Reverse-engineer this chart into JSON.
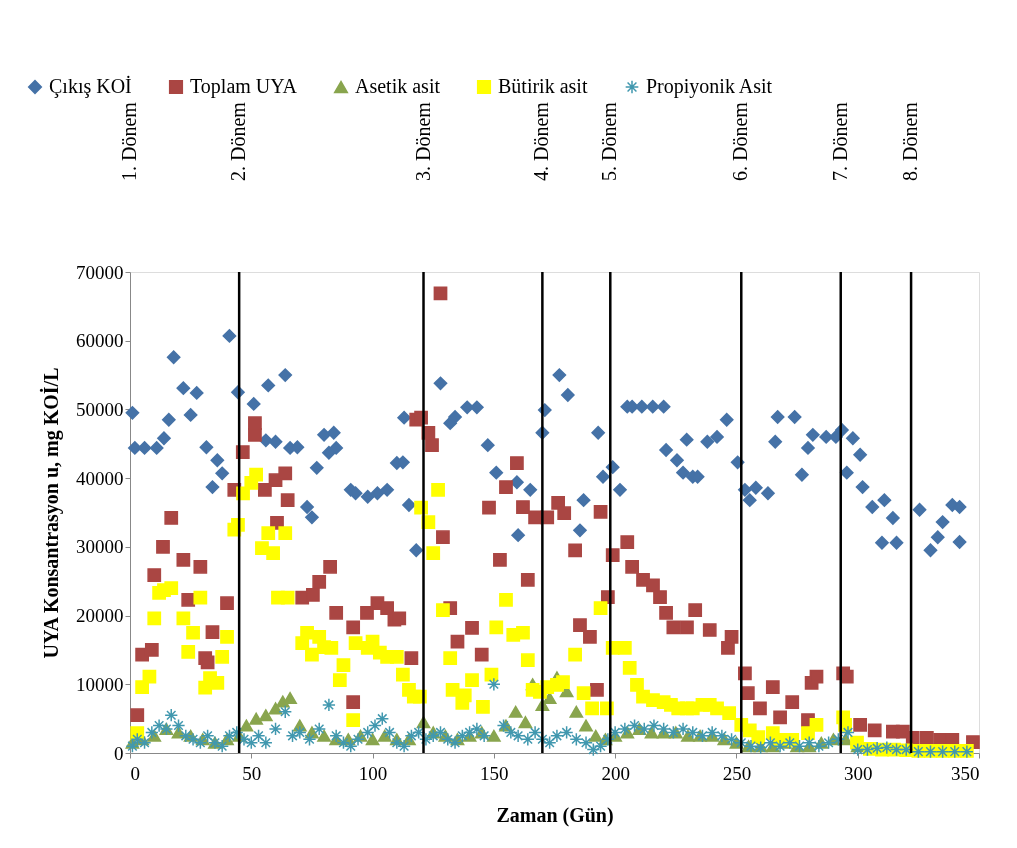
{
  "chart_data": {
    "type": "scatter",
    "xlabel": "Zaman (Gün)",
    "ylabel": "UYA Konsantrasyon u, mg KOİ/L",
    "xlim": [
      0,
      350
    ],
    "xticks": [
      0,
      50,
      100,
      150,
      200,
      250,
      300,
      350
    ],
    "ylim": [
      0,
      70000
    ],
    "yticks": [
      0,
      10000,
      20000,
      30000,
      40000,
      50000,
      60000,
      70000
    ],
    "grid": false,
    "legend": "top",
    "series": [
      {
        "name": "Çıkış KOİ",
        "color": "#4572a7",
        "marker": "diamond",
        "x": [
          1,
          2,
          6,
          11,
          14,
          16,
          18,
          22,
          25,
          27.5,
          31.5,
          34,
          36,
          38,
          41,
          44.5,
          51,
          56,
          57,
          60,
          64,
          66,
          69,
          73,
          75,
          77,
          80,
          82,
          84,
          85,
          91,
          93,
          98,
          102,
          106,
          110,
          112.5,
          113,
          115,
          118,
          128,
          132,
          134,
          139,
          143,
          147.5,
          151,
          159.5,
          160,
          165,
          170,
          171,
          177,
          180.5,
          185.5,
          187,
          193,
          195,
          199,
          202,
          205,
          207,
          211,
          215.5,
          220,
          221,
          225.5,
          228,
          229.5,
          232,
          234,
          238,
          242,
          246,
          250.5,
          253.5,
          255.5,
          258,
          263,
          266,
          267,
          274,
          277,
          279.5,
          281.5,
          287,
          291,
          293.5,
          295.5,
          298,
          301,
          302,
          306,
          310,
          311,
          314.5,
          316,
          325.5,
          330,
          333,
          335,
          339,
          342,
          342
        ],
        "values": [
          49500,
          44400,
          44400,
          44400,
          45800,
          48500,
          57600,
          53100,
          49200,
          52400,
          44500,
          38700,
          42600,
          40700,
          60700,
          52500,
          50800,
          45500,
          53500,
          45300,
          55000,
          44400,
          44500,
          35800,
          34300,
          41500,
          46300,
          43700,
          46600,
          44400,
          38300,
          37800,
          37300,
          37800,
          38300,
          42200,
          42300,
          48800,
          36100,
          29500,
          53800,
          48000,
          48900,
          50300,
          50300,
          44800,
          40800,
          39400,
          31700,
          38300,
          46600,
          49900,
          55000,
          52100,
          32400,
          36800,
          46600,
          40200,
          41600,
          38300,
          50400,
          50400,
          50400,
          50400,
          50400,
          44100,
          42600,
          40800,
          45600,
          40200,
          40200,
          45300,
          46000,
          48500,
          42300,
          38300,
          36800,
          38600,
          37800,
          45300,
          48900,
          48900,
          40500,
          44400,
          46300,
          46000,
          46000,
          47000,
          40800,
          45800,
          43400,
          38700,
          35800,
          30600,
          36800,
          34200,
          30600,
          35400,
          29500,
          31400,
          33600,
          36100,
          35800,
          30700
        ]
      },
      {
        "name": "Toplam UYA",
        "color": "#aa4643",
        "marker": "square",
        "x": [
          3,
          5,
          9,
          10,
          13.6,
          17,
          22,
          24,
          29,
          31,
          32,
          34,
          40,
          43,
          46.5,
          51.5,
          51.5,
          55.6,
          60,
          60.6,
          64,
          65,
          71,
          75.4,
          78,
          82.5,
          85,
          92,
          92,
          97.7,
          102,
          106,
          109,
          111,
          116,
          118,
          120,
          123,
          124.5,
          128,
          129,
          132,
          135,
          141,
          145,
          148,
          152.5,
          155,
          159.5,
          162,
          164,
          167,
          172,
          176.5,
          179,
          183.5,
          185.5,
          189.6,
          192.5,
          194,
          197,
          199,
          205,
          207,
          211.5,
          215.6,
          218.5,
          221,
          224,
          229.6,
          233,
          239,
          246.5,
          248,
          253.5,
          254.7,
          259.7,
          265,
          268,
          273,
          279.5,
          281,
          283,
          294,
          295.5,
          301,
          307,
          314.5,
          318.6,
          322.7,
          328.5,
          334,
          339,
          347.5
        ],
        "values": [
          5500,
          14300,
          15000,
          25900,
          30000,
          34200,
          28100,
          22300,
          27100,
          13800,
          13200,
          17600,
          21800,
          38300,
          43800,
          48000,
          46300,
          38300,
          39700,
          33500,
          40700,
          36800,
          22600,
          23000,
          24900,
          27100,
          20400,
          18300,
          7400,
          20400,
          21800,
          21100,
          19400,
          19600,
          13800,
          48500,
          48800,
          46600,
          44800,
          66900,
          31400,
          21100,
          16200,
          18200,
          14300,
          35700,
          28100,
          38700,
          42200,
          35800,
          25200,
          34300,
          34300,
          36400,
          34900,
          29500,
          18600,
          16900,
          9200,
          35100,
          22700,
          28800,
          30700,
          27100,
          25200,
          24400,
          22700,
          20400,
          18300,
          18300,
          20800,
          17900,
          15300,
          16900,
          11600,
          8700,
          6500,
          9600,
          5200,
          7400,
          4800,
          10200,
          11100,
          11600,
          11100,
          4100,
          3300,
          3100,
          3100,
          2200,
          2200,
          1900,
          1900,
          1600
        ]
      },
      {
        "name": "Asetik asit",
        "color": "#89a54e",
        "marker": "triangle",
        "x": [
          1,
          5,
          10,
          15,
          20,
          25,
          30,
          35,
          40,
          45,
          48,
          52,
          56,
          60,
          63,
          66,
          70,
          75,
          80,
          85,
          90,
          95,
          100,
          105,
          110,
          115,
          121,
          125,
          130,
          135,
          140,
          145,
          150,
          155,
          159,
          163,
          166,
          170,
          173,
          176,
          180,
          184,
          188,
          192,
          196,
          200,
          205,
          210,
          215,
          220,
          225,
          230,
          235,
          240,
          245,
          250,
          255,
          260,
          265,
          270,
          275,
          280,
          285,
          290,
          295,
          300
        ],
        "values": [
          1500,
          2000,
          2500,
          3500,
          3000,
          2500,
          2000,
          1500,
          2000,
          2500,
          4000,
          5000,
          5500,
          6500,
          7500,
          8000,
          4000,
          3000,
          2500,
          2000,
          2000,
          2500,
          2000,
          2500,
          2000,
          2000,
          4500,
          3000,
          2500,
          2000,
          2500,
          3000,
          2500,
          4000,
          6000,
          4500,
          10000,
          7000,
          8000,
          11000,
          9000,
          6000,
          4000,
          2500,
          2000,
          2500,
          3000,
          3500,
          3000,
          3000,
          3000,
          2500,
          2500,
          2500,
          2000,
          1500,
          1000,
          1000,
          1000,
          1500,
          1000,
          1000,
          1500,
          2000,
          2000,
          1000
        ]
      },
      {
        "name": "Bütirik asit",
        "color": "#ffff00",
        "marker": "square",
        "x": [
          3,
          5,
          8,
          10,
          12,
          14,
          17,
          22,
          24,
          26,
          29,
          31,
          33,
          36,
          38,
          40,
          43,
          44.5,
          46.6,
          50,
          52,
          54.4,
          57,
          59,
          61,
          64,
          65,
          71,
          73,
          75,
          78,
          80,
          83,
          86.5,
          88,
          92,
          93,
          98,
          100,
          103,
          106,
          110,
          112.5,
          115,
          117,
          119.5,
          120,
          123,
          125,
          127,
          129,
          132,
          133,
          137,
          138,
          141,
          145.5,
          149,
          151,
          155,
          158,
          162,
          164,
          166,
          169,
          172,
          176,
          178.5,
          183.5,
          187,
          190.5,
          194,
          196.6,
          199,
          204,
          206,
          209,
          211.5,
          215.6,
          220,
          223,
          226,
          229.6,
          232,
          236,
          239,
          242,
          247,
          252,
          255.5,
          259,
          265,
          268,
          273,
          279.5,
          283,
          294,
          294.8,
          299.7,
          305,
          310,
          315,
          320,
          325,
          330,
          335,
          340,
          345
        ],
        "values": [
          2900,
          9600,
          11100,
          19600,
          23300,
          23700,
          24000,
          19600,
          14700,
          17500,
          22600,
          9500,
          10900,
          10200,
          14000,
          16900,
          32500,
          33200,
          37800,
          39300,
          40500,
          29800,
          32000,
          29100,
          22600,
          32000,
          22600,
          16000,
          17500,
          14300,
          16900,
          15400,
          15300,
          10600,
          12800,
          4800,
          16000,
          15300,
          16200,
          14600,
          14000,
          14000,
          11400,
          9200,
          8200,
          8200,
          35700,
          33600,
          29100,
          38300,
          20800,
          13800,
          9200,
          7300,
          8400,
          10600,
          6700,
          11400,
          18300,
          22300,
          17200,
          17500,
          13500,
          9200,
          8900,
          9600,
          9900,
          10300,
          14300,
          8700,
          6500,
          21100,
          6500,
          15300,
          15300,
          12400,
          9900,
          8200,
          7700,
          7400,
          7000,
          6500,
          6500,
          6500,
          7000,
          7000,
          6500,
          5800,
          4100,
          3300,
          2300,
          2900,
          1900,
          1900,
          2900,
          4100,
          5200,
          4100,
          1500,
          600,
          500,
          500,
          400,
          300,
          300,
          300,
          300,
          300
        ]
      },
      {
        "name": "Propiyonik Asit",
        "color": "#4198af",
        "marker": "cross",
        "x": [
          1,
          3,
          6,
          9,
          12,
          15,
          17,
          20,
          23,
          26,
          29,
          32,
          35,
          38,
          41,
          44,
          47,
          50,
          53,
          56,
          60,
          64,
          67,
          70,
          74,
          78,
          82,
          85,
          88,
          91,
          94,
          98,
          101,
          104,
          107,
          110,
          113,
          116,
          119,
          122,
          125,
          128,
          131,
          134,
          137,
          140,
          143,
          146,
          150,
          154,
          157,
          160,
          164,
          167,
          170,
          173,
          176,
          180,
          184,
          188,
          191,
          194,
          197,
          200,
          204,
          208,
          212,
          216,
          220,
          224,
          228,
          232,
          236,
          240,
          244,
          248,
          252,
          256,
          260,
          264,
          268,
          272,
          276,
          280,
          284,
          288,
          292,
          296,
          300,
          304,
          308,
          312,
          316,
          320,
          325,
          330,
          335,
          340,
          345
        ],
        "values": [
          1000,
          2000,
          1500,
          3000,
          4000,
          3500,
          5500,
          4000,
          2500,
          2000,
          1500,
          2500,
          1500,
          1000,
          2500,
          3000,
          2000,
          1500,
          2500,
          1500,
          3500,
          6000,
          2500,
          3000,
          2000,
          3500,
          7000,
          2500,
          1500,
          1000,
          2000,
          3000,
          4000,
          5000,
          3000,
          1500,
          1000,
          2500,
          3000,
          2000,
          2500,
          3000,
          2000,
          1500,
          2500,
          3000,
          3500,
          2500,
          10000,
          4000,
          3000,
          2500,
          2000,
          3000,
          2000,
          1500,
          2500,
          3000,
          2000,
          1500,
          500,
          1000,
          2000,
          3000,
          3500,
          4000,
          3500,
          4000,
          3500,
          3000,
          3500,
          3000,
          2500,
          3000,
          2500,
          2000,
          1500,
          1000,
          800,
          1500,
          1000,
          1500,
          1000,
          1500,
          1000,
          1500,
          2000,
          3000,
          500,
          500,
          700,
          800,
          500,
          500,
          200,
          200,
          200,
          200,
          200
        ]
      }
    ],
    "ref_lines": [
      {
        "axis": "x",
        "value": 45,
        "color": "#000000"
      },
      {
        "axis": "x",
        "value": 121,
        "color": "#000000"
      },
      {
        "axis": "x",
        "value": 170,
        "color": "#000000"
      },
      {
        "axis": "x",
        "value": 198,
        "color": "#000000"
      },
      {
        "axis": "x",
        "value": 252,
        "color": "#000000"
      },
      {
        "axis": "x",
        "value": 293,
        "color": "#000000"
      },
      {
        "axis": "x",
        "value": 322,
        "color": "#000000"
      }
    ],
    "annotations": [
      "1. Dönem",
      "2. Dönem",
      "3. Dönem",
      "4. Dönem",
      "5. Dönem",
      "6. Dönem",
      "7. Dönem",
      "8. Dönem"
    ]
  }
}
